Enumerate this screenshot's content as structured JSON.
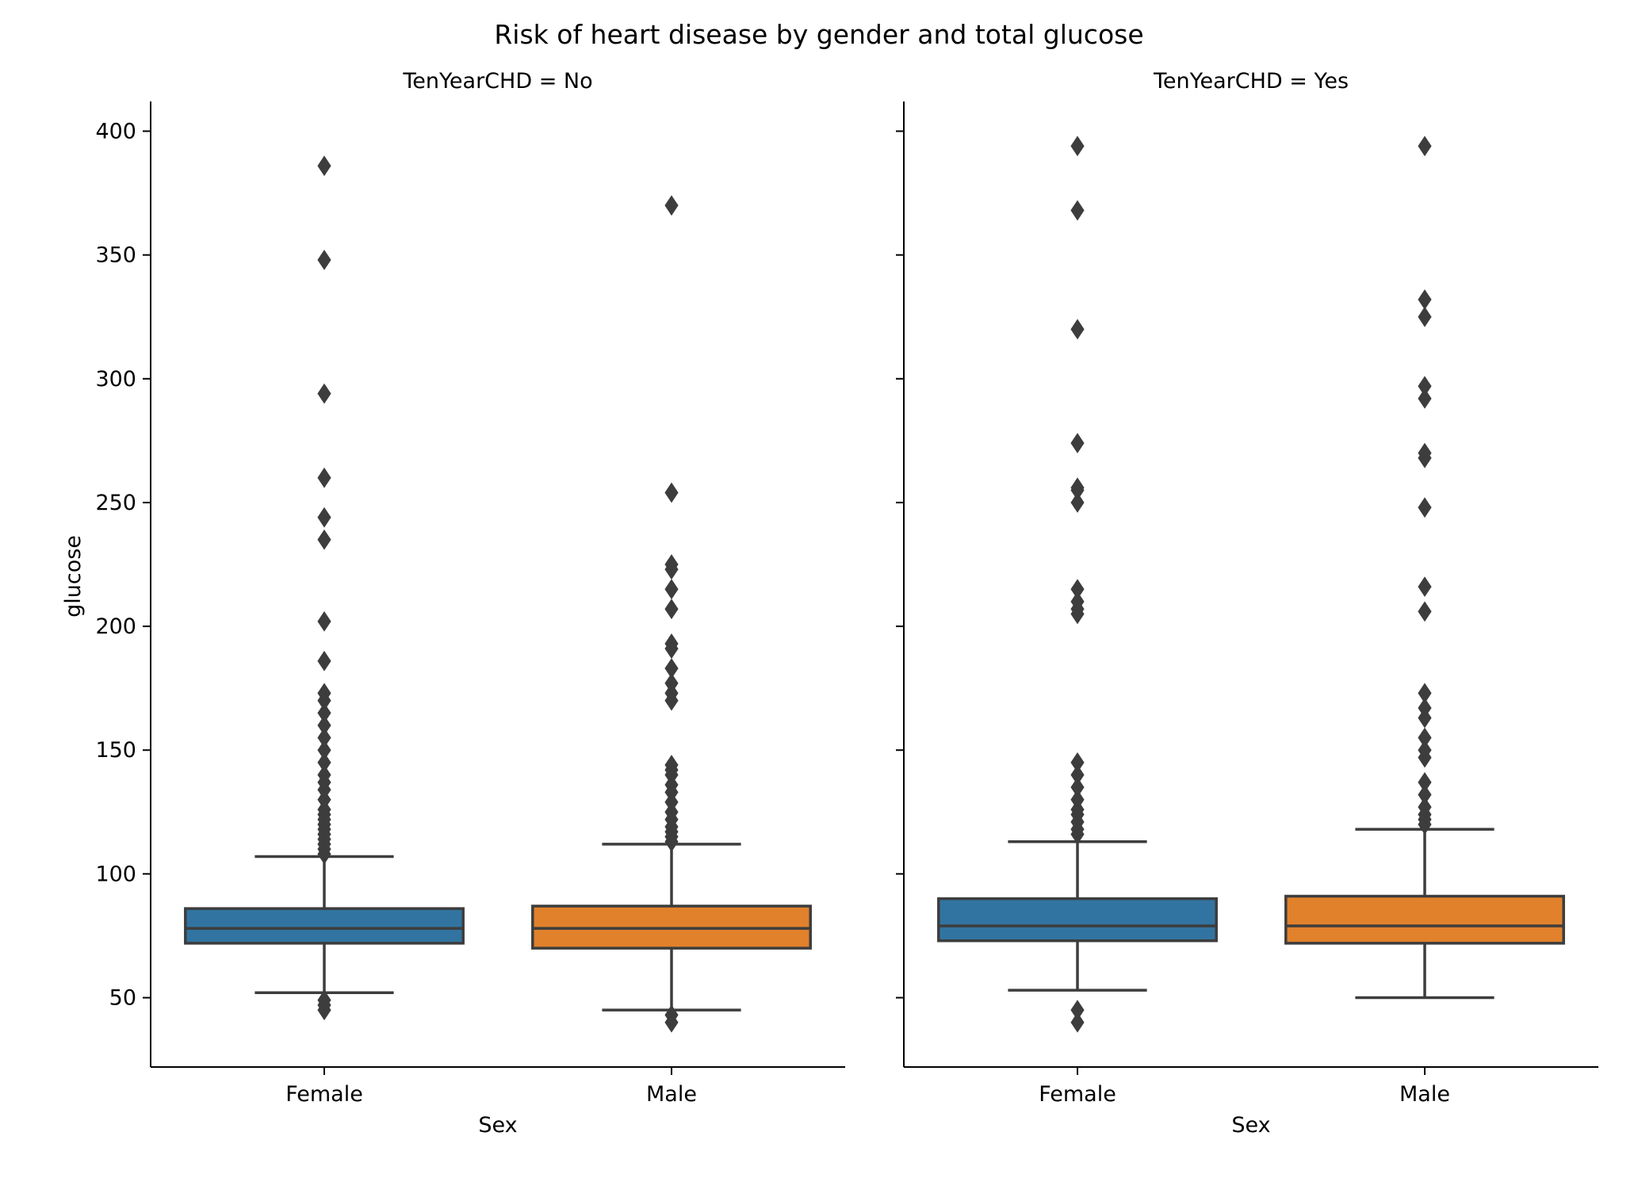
{
  "chart_data": {
    "type": "boxplot",
    "title": "Risk of heart disease by gender and total glucose",
    "ylabel": "glucose",
    "xlabel": "Sex",
    "ylim": [
      22,
      412
    ],
    "yticks": [
      50,
      100,
      150,
      200,
      250,
      300,
      350,
      400
    ],
    "categories": [
      "Female",
      "Male"
    ],
    "colors": {
      "Female": "#3274a1",
      "Male": "#e1812c",
      "line": "#3d3d3d"
    },
    "grid": false,
    "panels": [
      {
        "title": "TenYearCHD = No",
        "boxes": [
          {
            "category": "Female",
            "whisker_low": 52,
            "q1": 72,
            "median": 78,
            "q3": 86,
            "whisker_high": 107,
            "outliers": [
              45,
              47,
              49,
              108,
              110,
              112,
              114,
              116,
              118,
              120,
              122,
              124,
              126,
              130,
              134,
              137,
              140,
              145,
              150,
              155,
              160,
              165,
              170,
              173,
              186,
              202,
              235,
              244,
              260,
              294,
              348,
              386
            ]
          },
          {
            "category": "Male",
            "whisker_low": 45,
            "q1": 70,
            "median": 78,
            "q3": 87,
            "whisker_high": 112,
            "outliers": [
              40,
              43,
              113,
              115,
              117,
              119,
              122,
              125,
              129,
              133,
              136,
              140,
              142,
              144,
              170,
              173,
              177,
              183,
              191,
              193,
              207,
              215,
              223,
              225,
              254,
              370
            ]
          }
        ]
      },
      {
        "title": "TenYearCHD = Yes",
        "boxes": [
          {
            "category": "Female",
            "whisker_low": 53,
            "q1": 73,
            "median": 79,
            "q3": 90,
            "whisker_high": 113,
            "outliers": [
              40,
              45,
              116,
              118,
              121,
              124,
              126,
              130,
              135,
              140,
              145,
              205,
              207,
              210,
              215,
              250,
              255,
              256,
              274,
              320,
              368,
              394
            ]
          },
          {
            "category": "Male",
            "whisker_low": 50,
            "q1": 72,
            "median": 79,
            "q3": 91,
            "whisker_high": 118,
            "outliers": [
              120,
              122,
              124,
              127,
              132,
              137,
              147,
              150,
              155,
              163,
              167,
              173,
              206,
              216,
              248,
              268,
              270,
              292,
              297,
              325,
              332,
              394
            ]
          }
        ]
      }
    ]
  }
}
